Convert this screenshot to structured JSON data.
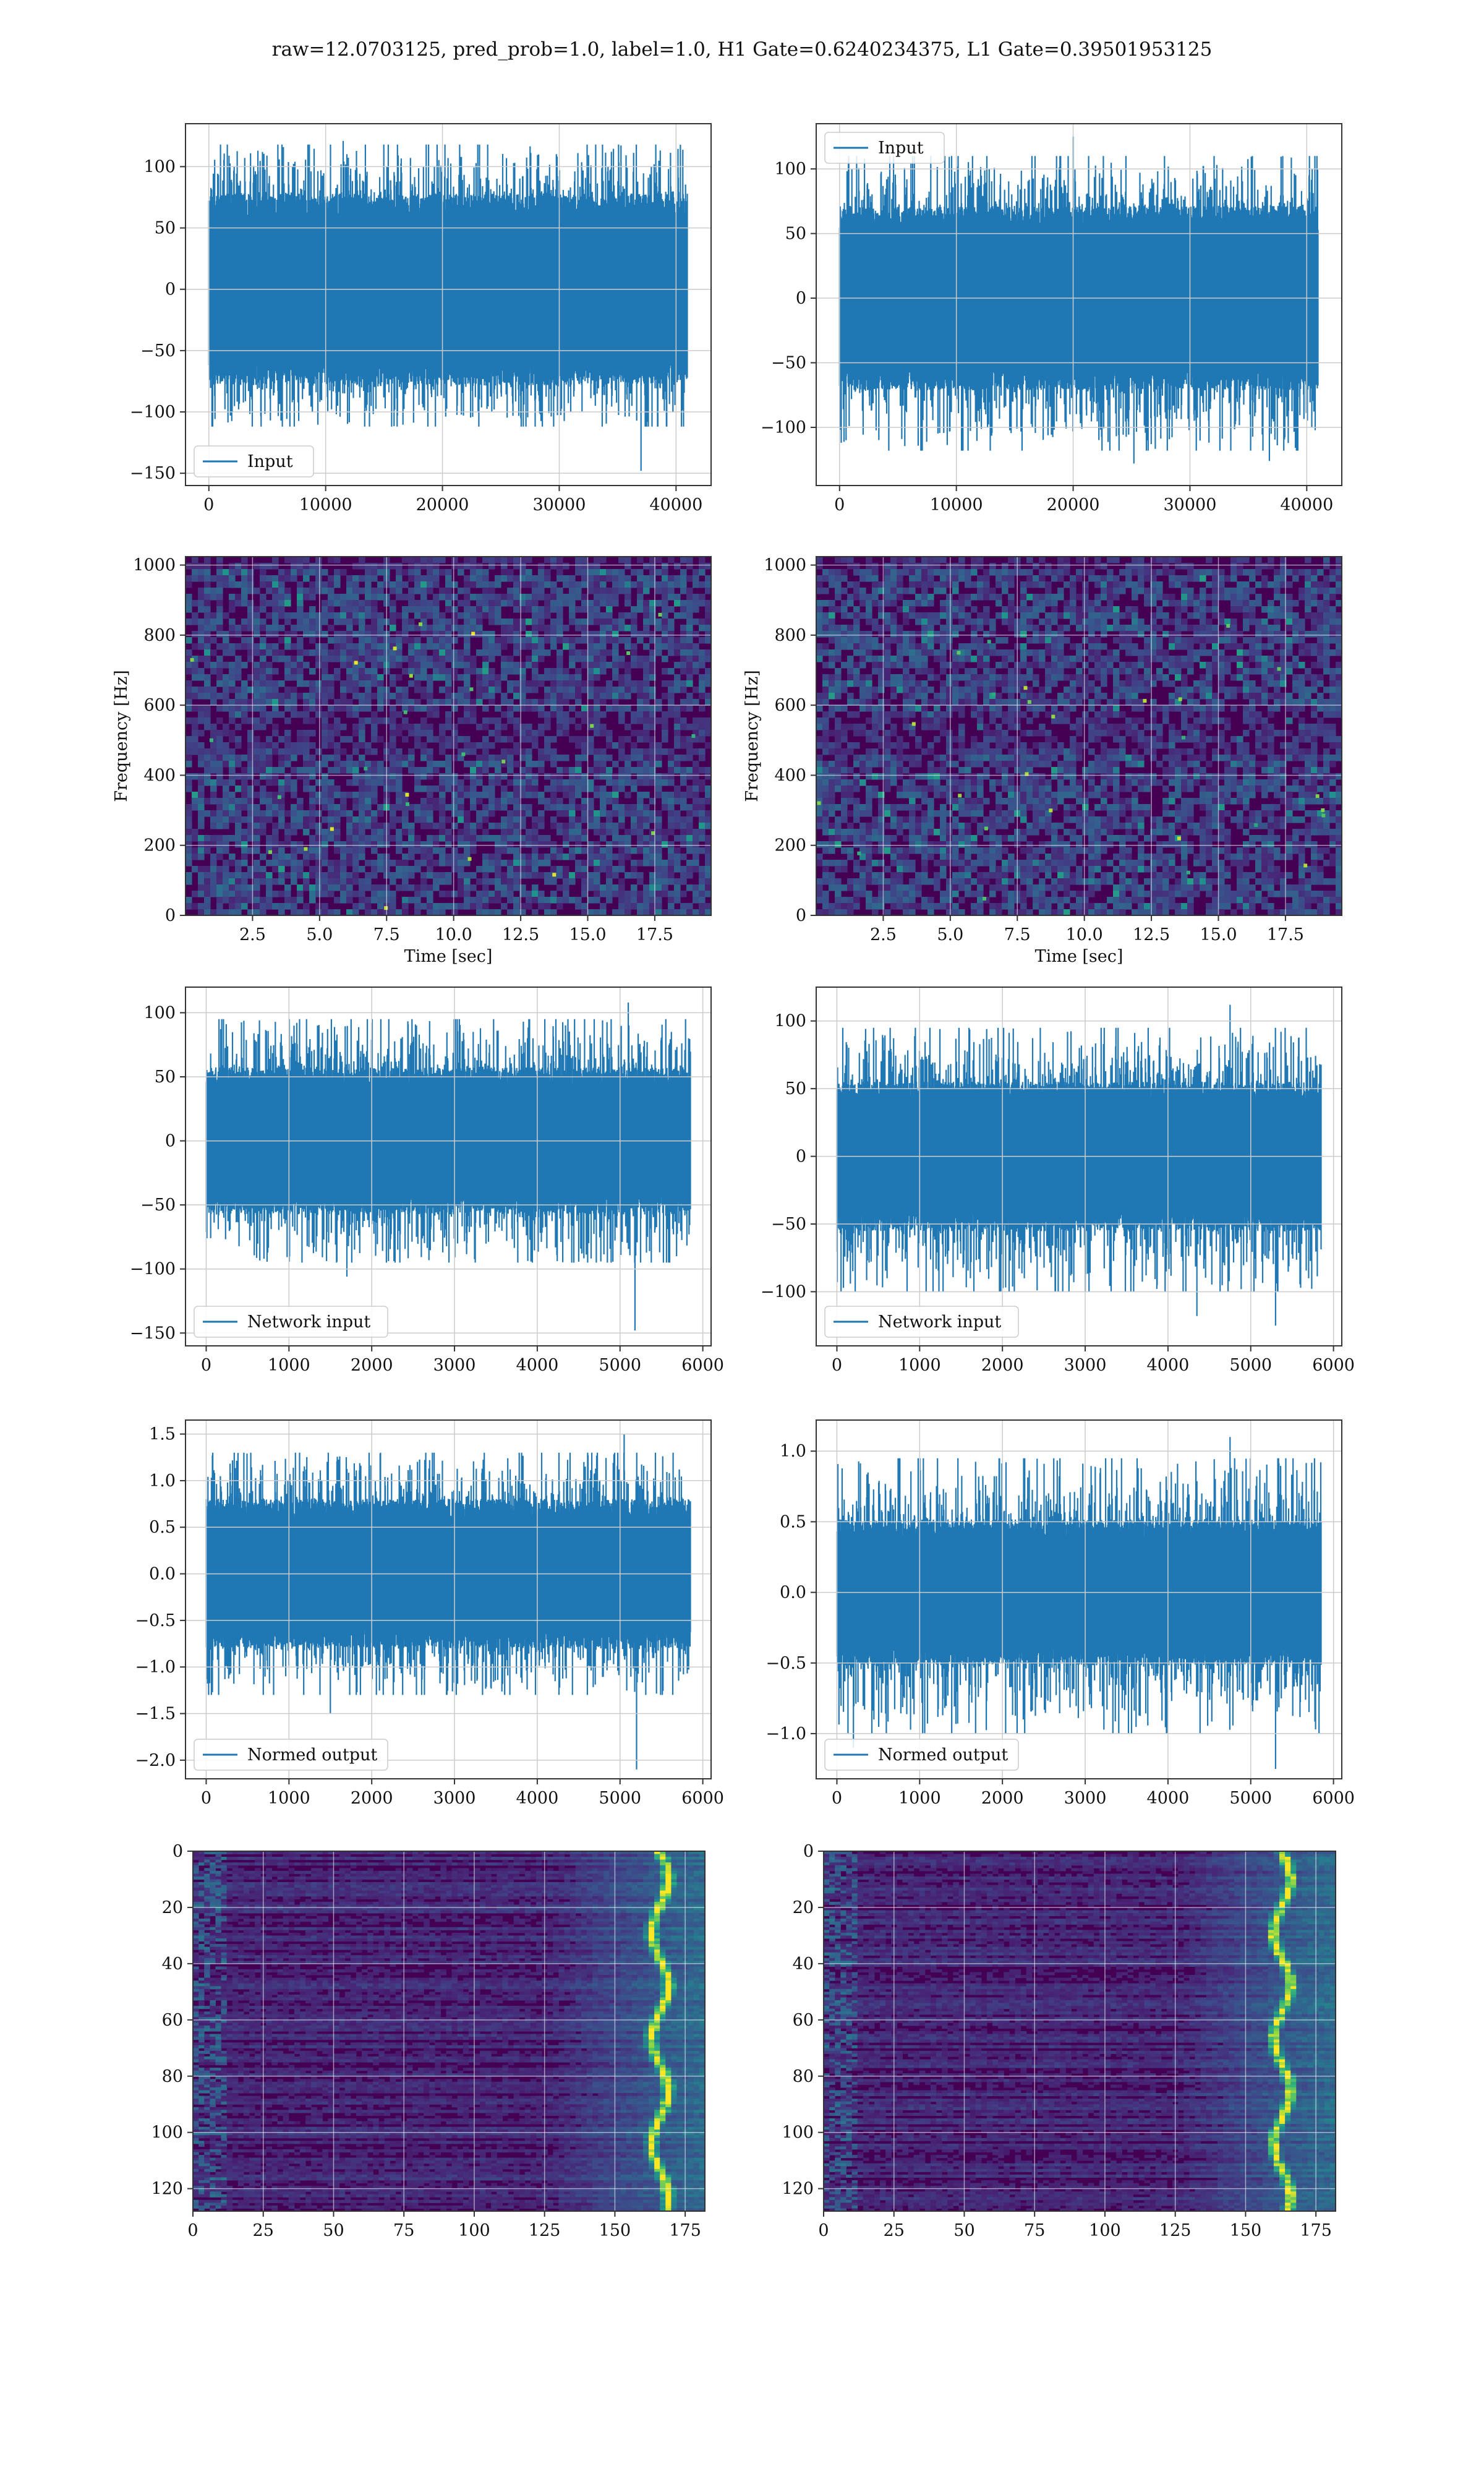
{
  "figure": {
    "title": "raw=12.0703125, pred_prob=1.0, label=1.0, H1 Gate=0.6240234375, L1 Gate=0.39501953125"
  },
  "colors": {
    "signal": "#1f77b4",
    "grid": "#cccccc",
    "viridis_dark": "#440154",
    "viridis_bright": "#fde725"
  },
  "chart_data": [
    {
      "id": "h1-input",
      "type": "line",
      "legend": "Input",
      "legend_loc": "lower-left",
      "xlim": [
        -2000,
        43000
      ],
      "ylim": [
        -160,
        135
      ],
      "xticks": [
        0,
        10000,
        20000,
        30000,
        40000
      ],
      "xtick_labels": [
        "0",
        "10000",
        "20000",
        "30000",
        "40000"
      ],
      "yticks": [
        -150,
        -100,
        -50,
        0,
        50,
        100
      ],
      "ytick_labels": [
        "−150",
        "−100",
        "−50",
        "0",
        "50",
        "100"
      ],
      "series": {
        "x_start": 0,
        "x_end": 40960,
        "body_range": [
          -68,
          68
        ],
        "spike_max": 118,
        "spike_min": -112,
        "extremes": [
          {
            "x": 37000,
            "y": -148
          },
          {
            "x": 11500,
            "y": 121
          },
          {
            "x": 4200,
            "y": 113
          }
        ]
      },
      "xlabel": "",
      "ylabel": "",
      "grid": true
    },
    {
      "id": "l1-input",
      "type": "line",
      "legend": "Input",
      "legend_loc": "upper-left",
      "xlim": [
        -2000,
        43000
      ],
      "ylim": [
        -145,
        135
      ],
      "xticks": [
        0,
        10000,
        20000,
        30000,
        40000
      ],
      "xtick_labels": [
        "0",
        "10000",
        "20000",
        "30000",
        "40000"
      ],
      "yticks": [
        -100,
        -50,
        0,
        50,
        100
      ],
      "ytick_labels": [
        "−100",
        "−50",
        "0",
        "50",
        "100"
      ],
      "series": {
        "x_start": 0,
        "x_end": 40960,
        "body_range": [
          -62,
          62
        ],
        "spike_max": 110,
        "spike_min": -118,
        "extremes": [
          {
            "x": 20000,
            "y": 125
          },
          {
            "x": 36800,
            "y": -126
          },
          {
            "x": 25200,
            "y": -128
          }
        ]
      },
      "xlabel": "",
      "ylabel": "",
      "grid": true
    },
    {
      "id": "h1-spectrogram",
      "type": "heatmap",
      "colormap": "viridis",
      "xlim": [
        0,
        19.6
      ],
      "ylim": [
        0,
        1024
      ],
      "xticks": [
        2.5,
        5.0,
        7.5,
        10.0,
        12.5,
        15.0,
        17.5
      ],
      "xtick_labels": [
        "2.5",
        "5.0",
        "7.5",
        "10.0",
        "12.5",
        "15.0",
        "17.5"
      ],
      "yticks": [
        0,
        200,
        400,
        600,
        800,
        1000
      ],
      "ytick_labels": [
        "0",
        "200",
        "400",
        "600",
        "800",
        "1000"
      ],
      "xlabel": "Time [sec]",
      "ylabel": "Frequency [Hz]",
      "grid": true
    },
    {
      "id": "l1-spectrogram",
      "type": "heatmap",
      "colormap": "viridis",
      "xlim": [
        0,
        19.6
      ],
      "ylim": [
        0,
        1024
      ],
      "xticks": [
        2.5,
        5.0,
        7.5,
        10.0,
        12.5,
        15.0,
        17.5
      ],
      "xtick_labels": [
        "2.5",
        "5.0",
        "7.5",
        "10.0",
        "12.5",
        "15.0",
        "17.5"
      ],
      "yticks": [
        0,
        200,
        400,
        600,
        800,
        1000
      ],
      "ytick_labels": [
        "0",
        "200",
        "400",
        "600",
        "800",
        "1000"
      ],
      "xlabel": "Time [sec]",
      "ylabel": "Frequency [Hz]",
      "grid": true
    },
    {
      "id": "h1-network-input",
      "type": "line",
      "legend": "Network input",
      "legend_loc": "lower-left",
      "xlim": [
        -250,
        6100
      ],
      "ylim": [
        -160,
        120
      ],
      "xticks": [
        0,
        1000,
        2000,
        3000,
        4000,
        5000,
        6000
      ],
      "xtick_labels": [
        "0",
        "1000",
        "2000",
        "3000",
        "4000",
        "5000",
        "6000"
      ],
      "yticks": [
        -150,
        -100,
        -50,
        0,
        50,
        100
      ],
      "ytick_labels": [
        "−150",
        "−100",
        "−50",
        "0",
        "50",
        "100"
      ],
      "series": {
        "x_start": 0,
        "x_end": 5850,
        "body_range": [
          -50,
          50
        ],
        "spike_max": 95,
        "spike_min": -95,
        "extremes": [
          {
            "x": 5180,
            "y": -148
          },
          {
            "x": 5100,
            "y": 108
          },
          {
            "x": 1700,
            "y": -106
          }
        ]
      },
      "xlabel": "",
      "ylabel": "",
      "grid": true
    },
    {
      "id": "l1-network-input",
      "type": "line",
      "legend": "Network input",
      "legend_loc": "lower-left",
      "xlim": [
        -250,
        6100
      ],
      "ylim": [
        -140,
        125
      ],
      "xticks": [
        0,
        1000,
        2000,
        3000,
        4000,
        5000,
        6000
      ],
      "xtick_labels": [
        "0",
        "1000",
        "2000",
        "3000",
        "4000",
        "5000",
        "6000"
      ],
      "yticks": [
        -100,
        -50,
        0,
        50,
        100
      ],
      "ytick_labels": [
        "−100",
        "−50",
        "0",
        "50",
        "100"
      ],
      "series": {
        "x_start": 0,
        "x_end": 5850,
        "body_range": [
          -48,
          48
        ],
        "spike_max": 95,
        "spike_min": -100,
        "extremes": [
          {
            "x": 4750,
            "y": 112
          },
          {
            "x": 5300,
            "y": -125
          },
          {
            "x": 4350,
            "y": -118
          }
        ]
      },
      "xlabel": "",
      "ylabel": "",
      "grid": true
    },
    {
      "id": "h1-normed-output",
      "type": "line",
      "legend": "Normed output",
      "legend_loc": "lower-left",
      "xlim": [
        -250,
        6100
      ],
      "ylim": [
        -2.2,
        1.65
      ],
      "xticks": [
        0,
        1000,
        2000,
        3000,
        4000,
        5000,
        6000
      ],
      "xtick_labels": [
        "0",
        "1000",
        "2000",
        "3000",
        "4000",
        "5000",
        "6000"
      ],
      "yticks": [
        -2.0,
        -1.5,
        -1.0,
        -0.5,
        0.0,
        0.5,
        1.0,
        1.5
      ],
      "ytick_labels": [
        "−2.0",
        "−1.5",
        "−1.0",
        "−0.5",
        "0.0",
        "0.5",
        "1.0",
        "1.5"
      ],
      "series": {
        "x_start": 0,
        "x_end": 5850,
        "body_range": [
          -0.7,
          0.7
        ],
        "spike_max": 1.3,
        "spike_min": -1.3,
        "extremes": [
          {
            "x": 5200,
            "y": -2.1
          },
          {
            "x": 5050,
            "y": 1.5
          },
          {
            "x": 1500,
            "y": -1.5
          }
        ]
      },
      "xlabel": "",
      "ylabel": "",
      "grid": true
    },
    {
      "id": "l1-normed-output",
      "type": "line",
      "legend": "Normed output",
      "legend_loc": "lower-left",
      "xlim": [
        -250,
        6100
      ],
      "ylim": [
        -1.32,
        1.22
      ],
      "xticks": [
        0,
        1000,
        2000,
        3000,
        4000,
        5000,
        6000
      ],
      "xtick_labels": [
        "0",
        "1000",
        "2000",
        "3000",
        "4000",
        "5000",
        "6000"
      ],
      "yticks": [
        -1.0,
        -0.5,
        0.0,
        0.5,
        1.0
      ],
      "ytick_labels": [
        "−1.0",
        "−0.5",
        "0.0",
        "0.5",
        "1.0"
      ],
      "series": {
        "x_start": 0,
        "x_end": 5850,
        "body_range": [
          -0.45,
          0.45
        ],
        "spike_max": 0.95,
        "spike_min": -1.0,
        "extremes": [
          {
            "x": 4750,
            "y": 1.1
          },
          {
            "x": 5300,
            "y": -1.25
          },
          {
            "x": 200,
            "y": -1.1
          }
        ]
      },
      "xlabel": "",
      "ylabel": "",
      "grid": true
    },
    {
      "id": "h1-feature-map",
      "type": "heatmap",
      "colormap": "viridis",
      "xlim": [
        0,
        182
      ],
      "ylim": [
        0,
        128
      ],
      "y_inverted": true,
      "xticks": [
        0,
        25,
        50,
        75,
        100,
        125,
        150,
        175
      ],
      "xtick_labels": [
        "0",
        "25",
        "50",
        "75",
        "100",
        "125",
        "150",
        "175"
      ],
      "yticks": [
        0,
        20,
        40,
        60,
        80,
        100,
        120
      ],
      "ytick_labels": [
        "0",
        "20",
        "40",
        "60",
        "80",
        "100",
        "120"
      ],
      "hot_column": 165,
      "xlabel": "",
      "ylabel": "",
      "grid": true
    },
    {
      "id": "l1-feature-map",
      "type": "heatmap",
      "colormap": "viridis",
      "xlim": [
        0,
        182
      ],
      "ylim": [
        0,
        128
      ],
      "y_inverted": true,
      "xticks": [
        0,
        25,
        50,
        75,
        100,
        125,
        150,
        175
      ],
      "xtick_labels": [
        "0",
        "25",
        "50",
        "75",
        "100",
        "125",
        "150",
        "175"
      ],
      "yticks": [
        0,
        20,
        40,
        60,
        80,
        100,
        120
      ],
      "ytick_labels": [
        "0",
        "20",
        "40",
        "60",
        "80",
        "100",
        "120"
      ],
      "hot_column": 162,
      "xlabel": "",
      "ylabel": "",
      "grid": true
    }
  ]
}
